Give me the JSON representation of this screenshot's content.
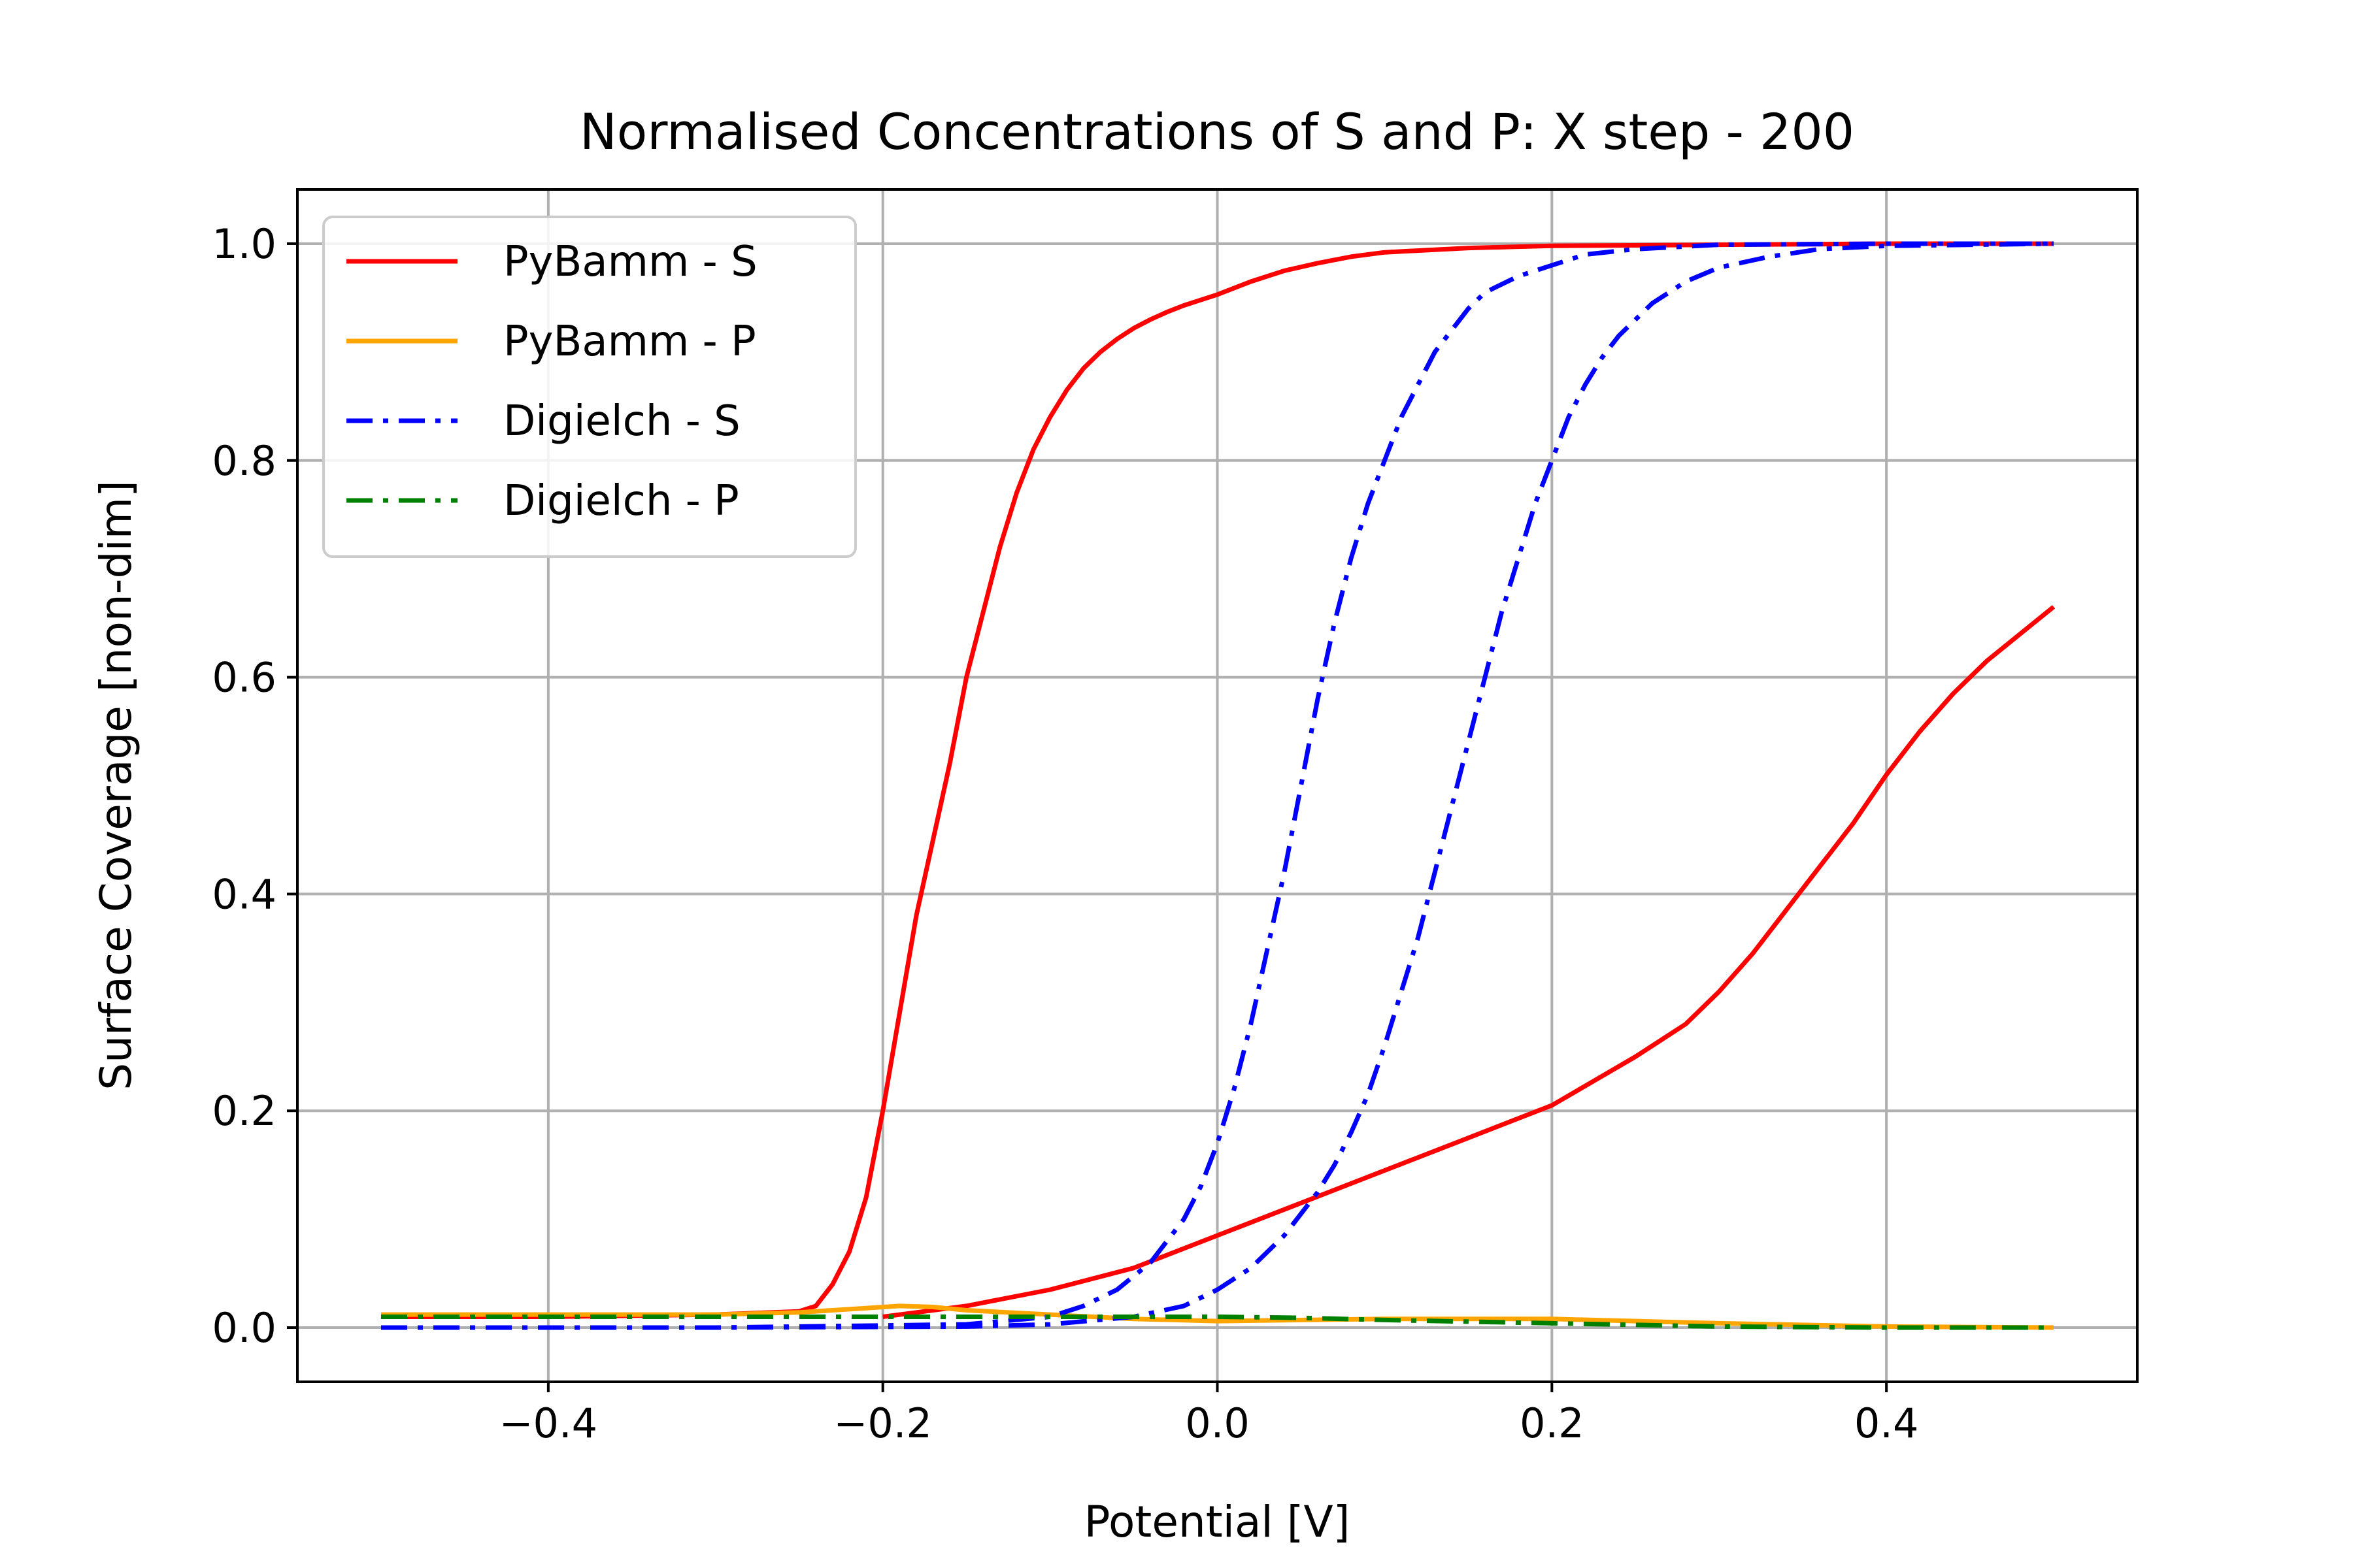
{
  "chart_data": {
    "type": "line",
    "title": "Normalised Concentrations of S and P: X step - 200",
    "xlabel": "Potential [V]",
    "ylabel": "Surface Coverage [non-dim]",
    "xlim": [
      -0.55,
      0.55
    ],
    "ylim": [
      -0.05,
      1.05
    ],
    "xticks": [
      -0.4,
      -0.2,
      0.0,
      0.2,
      0.4
    ],
    "xtick_labels": [
      "−0.4",
      "−0.2",
      "0.0",
      "0.2",
      "0.4"
    ],
    "yticks": [
      0.0,
      0.2,
      0.4,
      0.6,
      0.8,
      1.0
    ],
    "ytick_labels": [
      "0.0",
      "0.2",
      "0.4",
      "0.6",
      "0.8",
      "1.0"
    ],
    "grid": true,
    "legend_position": "top-left",
    "series": [
      {
        "name": "PyBamm - S",
        "color": "#ff0000",
        "style": "solid",
        "x": [
          -0.5,
          -0.4,
          -0.3,
          -0.25,
          -0.24,
          -0.23,
          -0.22,
          -0.21,
          -0.2,
          -0.19,
          -0.18,
          -0.17,
          -0.16,
          -0.15,
          -0.14,
          -0.13,
          -0.12,
          -0.11,
          -0.1,
          -0.09,
          -0.08,
          -0.07,
          -0.06,
          -0.05,
          -0.04,
          -0.03,
          -0.02,
          -0.01,
          0.0,
          0.02,
          0.04,
          0.06,
          0.08,
          0.1,
          0.15,
          0.2,
          0.3,
          0.4,
          0.5
        ],
        "y": [
          0.01,
          0.01,
          0.012,
          0.015,
          0.02,
          0.04,
          0.07,
          0.12,
          0.2,
          0.29,
          0.38,
          0.45,
          0.52,
          0.6,
          0.66,
          0.72,
          0.77,
          0.81,
          0.84,
          0.865,
          0.885,
          0.9,
          0.912,
          0.922,
          0.93,
          0.937,
          0.943,
          0.948,
          0.953,
          0.965,
          0.975,
          0.982,
          0.988,
          0.992,
          0.996,
          0.998,
          0.999,
          1.0,
          1.0
        ]
      },
      {
        "name": "",
        "color": "#ff0000",
        "style": "solid",
        "x": [
          -0.2,
          -0.15,
          -0.1,
          -0.05,
          0.0,
          0.05,
          0.1,
          0.15,
          0.2,
          0.25,
          0.28,
          0.3,
          0.32,
          0.34,
          0.36,
          0.38,
          0.4,
          0.42,
          0.44,
          0.46,
          0.48,
          0.5
        ],
        "y": [
          0.01,
          0.02,
          0.035,
          0.055,
          0.085,
          0.115,
          0.145,
          0.175,
          0.205,
          0.25,
          0.28,
          0.31,
          0.345,
          0.385,
          0.425,
          0.465,
          0.51,
          0.55,
          0.585,
          0.615,
          0.64,
          0.665
        ]
      },
      {
        "name": "PyBamm - P",
        "color": "#ffa500",
        "style": "solid",
        "x": [
          -0.5,
          -0.4,
          -0.3,
          -0.25,
          -0.21,
          -0.19,
          -0.17,
          -0.15,
          -0.1,
          -0.05,
          0.0,
          0.1,
          0.2,
          0.3,
          0.4,
          0.5
        ],
        "y": [
          0.012,
          0.012,
          0.012,
          0.014,
          0.018,
          0.02,
          0.019,
          0.016,
          0.012,
          0.008,
          0.006,
          0.008,
          0.008,
          0.004,
          0.001,
          0.0
        ]
      },
      {
        "name": "Digielch - S",
        "color": "#0000ff",
        "style": "dashdot",
        "x": [
          -0.5,
          -0.3,
          -0.15,
          -0.1,
          -0.08,
          -0.06,
          -0.04,
          -0.02,
          -0.01,
          0.0,
          0.01,
          0.02,
          0.03,
          0.04,
          0.05,
          0.06,
          0.07,
          0.08,
          0.09,
          0.1,
          0.11,
          0.12,
          0.13,
          0.14,
          0.15,
          0.16,
          0.18,
          0.2,
          0.22,
          0.25,
          0.3,
          0.4,
          0.5
        ],
        "y": [
          0.0,
          0.0,
          0.003,
          0.01,
          0.02,
          0.035,
          0.06,
          0.1,
          0.13,
          0.17,
          0.22,
          0.28,
          0.35,
          0.42,
          0.5,
          0.58,
          0.65,
          0.71,
          0.76,
          0.8,
          0.84,
          0.87,
          0.9,
          0.92,
          0.94,
          0.955,
          0.97,
          0.98,
          0.99,
          0.995,
          0.999,
          1.0,
          1.0
        ]
      },
      {
        "name": "",
        "color": "#0000ff",
        "style": "dashdot",
        "x": [
          -0.5,
          -0.3,
          -0.15,
          -0.1,
          -0.05,
          -0.02,
          0.0,
          0.02,
          0.04,
          0.06,
          0.07,
          0.08,
          0.09,
          0.1,
          0.11,
          0.12,
          0.13,
          0.14,
          0.15,
          0.16,
          0.17,
          0.18,
          0.19,
          0.2,
          0.21,
          0.22,
          0.23,
          0.24,
          0.25,
          0.26,
          0.27,
          0.28,
          0.3,
          0.33,
          0.36,
          0.4,
          0.5
        ],
        "y": [
          0.0,
          0.0,
          0.001,
          0.003,
          0.01,
          0.02,
          0.035,
          0.055,
          0.085,
          0.125,
          0.15,
          0.18,
          0.215,
          0.26,
          0.31,
          0.36,
          0.42,
          0.48,
          0.54,
          0.6,
          0.66,
          0.71,
          0.76,
          0.8,
          0.84,
          0.87,
          0.895,
          0.915,
          0.93,
          0.945,
          0.955,
          0.965,
          0.978,
          0.988,
          0.995,
          0.998,
          1.0
        ]
      },
      {
        "name": "Digielch - P",
        "color": "#008000",
        "style": "dashdot",
        "x": [
          -0.5,
          -0.4,
          -0.3,
          -0.2,
          -0.1,
          -0.05,
          0.0,
          0.05,
          0.1,
          0.2,
          0.3,
          0.4,
          0.5
        ],
        "y": [
          0.01,
          0.01,
          0.01,
          0.01,
          0.01,
          0.01,
          0.01,
          0.009,
          0.007,
          0.004,
          0.001,
          0.0,
          0.0
        ]
      }
    ]
  }
}
